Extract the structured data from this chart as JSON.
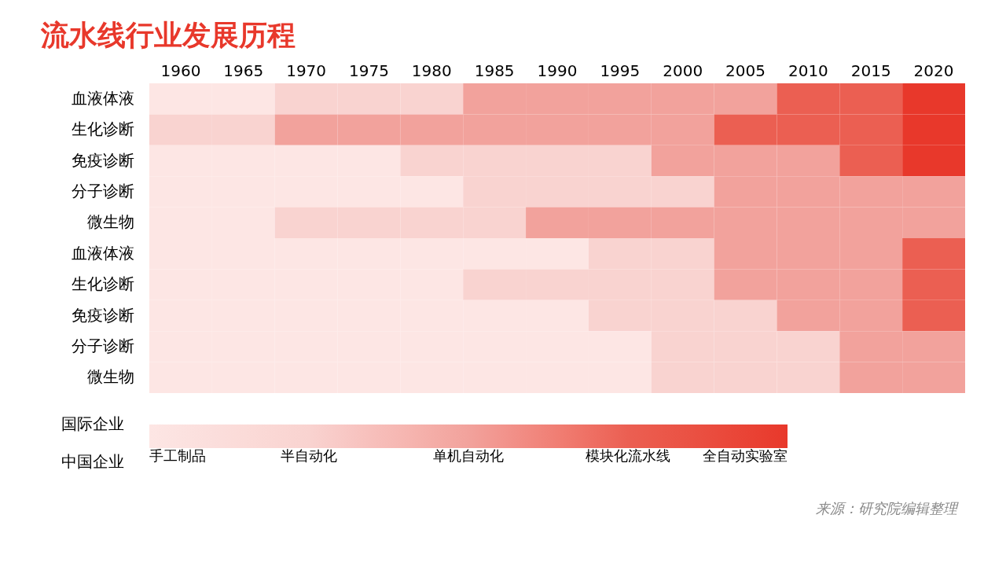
{
  "chart_data": {
    "type": "heatmap",
    "title": "流水线行业发展历程",
    "categories": [
      "1960",
      "1965",
      "1970",
      "1975",
      "1980",
      "1985",
      "1990",
      "1995",
      "2000",
      "2005",
      "2010",
      "2015",
      "2020"
    ],
    "y_categories": [
      "血液体液",
      "生化诊断",
      "免疫诊断",
      "分子诊断",
      "微生物",
      "血液体液",
      "生化诊断",
      "免疫诊断",
      "分子诊断",
      "微生物"
    ],
    "cells": [
      [
        1,
        1,
        2,
        2,
        2,
        3,
        3,
        3,
        3,
        3,
        4,
        4,
        5
      ],
      [
        2,
        2,
        3,
        3,
        3,
        3,
        3,
        3,
        3,
        4,
        4,
        4,
        5
      ],
      [
        1,
        1,
        1,
        1,
        2,
        2,
        2,
        2,
        3,
        3,
        3,
        4,
        5
      ],
      [
        1,
        1,
        1,
        1,
        1,
        2,
        2,
        2,
        2,
        3,
        3,
        3,
        3
      ],
      [
        1,
        1,
        2,
        2,
        2,
        2,
        3,
        3,
        3,
        3,
        3,
        3,
        3
      ],
      [
        1,
        1,
        1,
        1,
        1,
        1,
        1,
        2,
        2,
        3,
        3,
        3,
        4
      ],
      [
        1,
        1,
        1,
        1,
        1,
        2,
        2,
        2,
        2,
        3,
        3,
        3,
        4
      ],
      [
        1,
        1,
        1,
        1,
        1,
        1,
        1,
        2,
        2,
        2,
        3,
        3,
        4
      ],
      [
        1,
        1,
        1,
        1,
        1,
        1,
        1,
        1,
        2,
        2,
        2,
        3,
        3
      ],
      [
        1,
        1,
        1,
        1,
        1,
        1,
        1,
        1,
        2,
        2,
        2,
        3,
        3
      ]
    ],
    "clim": [
      1,
      5
    ],
    "cticks": [
      {
        "value": 1,
        "label": "手工制品"
      },
      {
        "value": 2,
        "label": "半自动化"
      },
      {
        "value": 3,
        "label": "单机自动化"
      },
      {
        "value": 4,
        "label": "模块化流水线"
      },
      {
        "value": 5,
        "label": "全自动实验室"
      }
    ],
    "colors": [
      "#fde6e4",
      "#f9d3d0",
      "#f2a29c",
      "#eb5f52",
      "#e8382b"
    ],
    "annotations": [
      "国际企业",
      "中国企业",
      "来源：研究院编辑整理"
    ]
  }
}
